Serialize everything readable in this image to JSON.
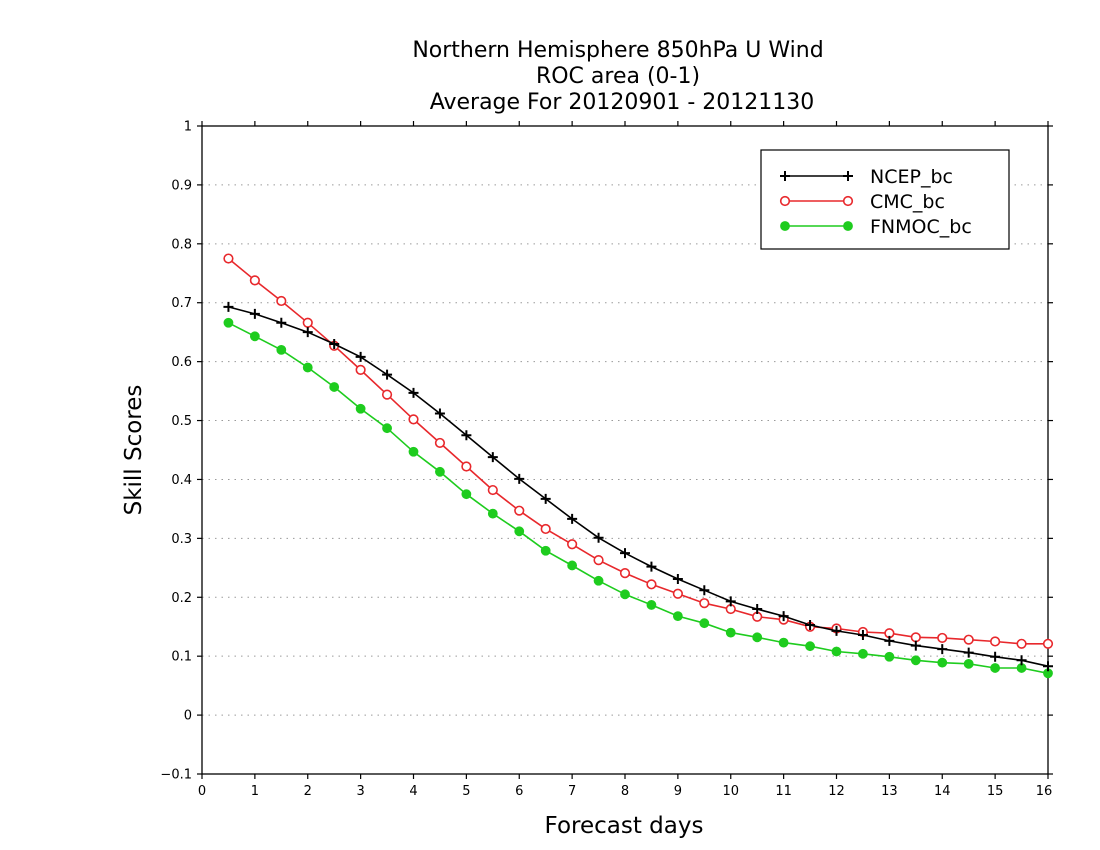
{
  "chart_data": {
    "type": "line",
    "title_lines": [
      "Northern Hemisphere 850hPa U Wind",
      "ROC area (0-1)",
      "Average For 20120901 - 20121130"
    ],
    "xlabel": "Forecast days",
    "ylabel": "Skill Scores",
    "xlim": [
      0,
      16
    ],
    "ylim": [
      -0.1,
      1
    ],
    "x_ticks": [
      "0",
      "1",
      "2",
      "3",
      "4",
      "5",
      "6",
      "7",
      "8",
      "9",
      "10",
      "11",
      "12",
      "13",
      "14",
      "15",
      "16"
    ],
    "y_ticks": [
      "-0.1",
      "0",
      "0.1",
      "0.2",
      "0.3",
      "0.4",
      "0.5",
      "0.6",
      "0.7",
      "0.8",
      "0.9",
      "1"
    ],
    "grid": "horizontal dotted",
    "legend_position": "top-right",
    "x": [
      0.5,
      1,
      1.5,
      2,
      2.5,
      3,
      3.5,
      4,
      4.5,
      5,
      5.5,
      6,
      6.5,
      7,
      7.5,
      8,
      8.5,
      9,
      9.5,
      10,
      10.5,
      11,
      11.5,
      12,
      12.5,
      13,
      13.5,
      14,
      14.5,
      15,
      15.5,
      16
    ],
    "series": [
      {
        "name": "NCEP_bc",
        "color": "#000000",
        "marker": "plus",
        "values": [
          0.693,
          0.681,
          0.666,
          0.65,
          0.63,
          0.608,
          0.578,
          0.547,
          0.512,
          0.475,
          0.438,
          0.401,
          0.367,
          0.333,
          0.301,
          0.275,
          0.252,
          0.231,
          0.212,
          0.193,
          0.18,
          0.168,
          0.153,
          0.143,
          0.136,
          0.126,
          0.118,
          0.112,
          0.106,
          0.099,
          0.093,
          0.083
        ]
      },
      {
        "name": "CMC_bc",
        "color": "#e8282c",
        "marker": "open-circle",
        "values": [
          0.775,
          0.738,
          0.703,
          0.666,
          0.627,
          0.586,
          0.544,
          0.502,
          0.462,
          0.422,
          0.382,
          0.347,
          0.316,
          0.29,
          0.263,
          0.241,
          0.222,
          0.206,
          0.19,
          0.18,
          0.167,
          0.162,
          0.15,
          0.147,
          0.141,
          0.139,
          0.132,
          0.131,
          0.128,
          0.125,
          0.121,
          0.121
        ]
      },
      {
        "name": "FNMOC_bc",
        "color": "#1ecc1e",
        "marker": "filled-circle",
        "values": [
          0.666,
          0.643,
          0.62,
          0.59,
          0.557,
          0.52,
          0.487,
          0.447,
          0.413,
          0.375,
          0.342,
          0.312,
          0.279,
          0.254,
          0.228,
          0.205,
          0.187,
          0.168,
          0.156,
          0.14,
          0.132,
          0.123,
          0.117,
          0.108,
          0.104,
          0.099,
          0.093,
          0.089,
          0.087,
          0.08,
          0.08,
          0.071
        ]
      }
    ]
  }
}
